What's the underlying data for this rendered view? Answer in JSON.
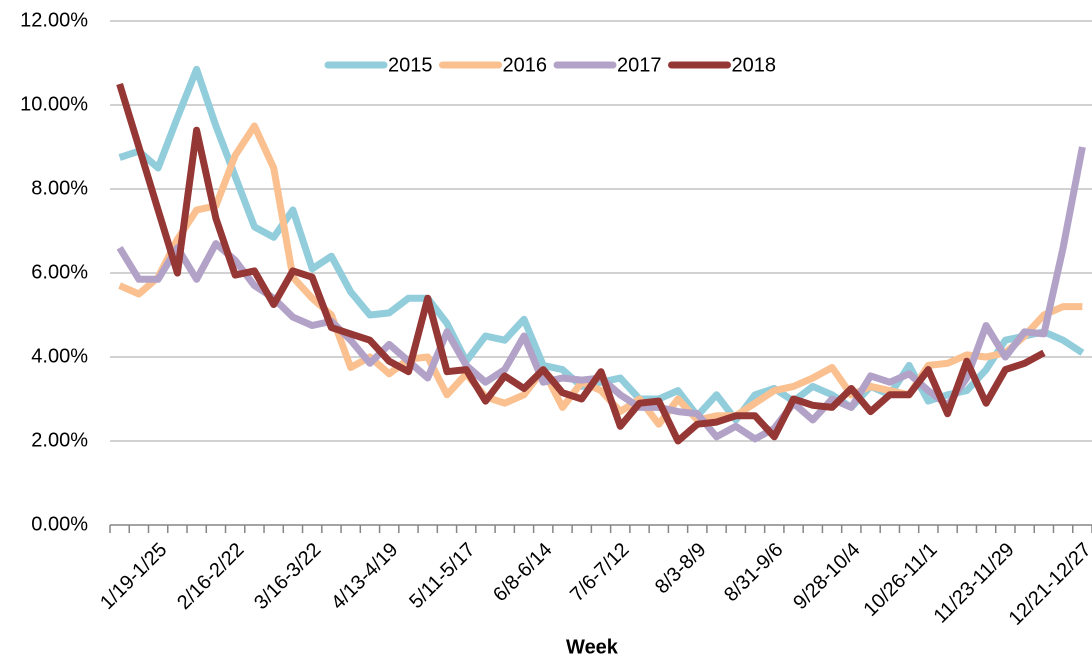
{
  "chart_data": {
    "type": "line",
    "x_label": "Week",
    "categories": [
      null,
      null,
      "1/19-1/25",
      null,
      null,
      null,
      "2/16-2/22",
      null,
      null,
      null,
      "3/16-3/22",
      null,
      null,
      null,
      "4/13-4/19",
      null,
      null,
      null,
      "5/11-5/17",
      null,
      null,
      null,
      "6/8-6/14",
      null,
      null,
      null,
      "7/6-7/12",
      null,
      null,
      null,
      "8/3-8/9",
      null,
      null,
      null,
      "8/31-9/6",
      null,
      null,
      null,
      "9/28-10/4",
      null,
      null,
      null,
      "10/26-11/1",
      null,
      null,
      null,
      "11/23-11/29",
      null,
      null,
      null,
      "12/21-12/27"
    ],
    "series": [
      {
        "name": "2015",
        "color": "#92cddc",
        "values": [
          8.75,
          8.9,
          8.5,
          9.7,
          10.85,
          9.5,
          8.3,
          7.1,
          6.85,
          7.5,
          6.1,
          6.4,
          5.55,
          5.0,
          5.05,
          5.4,
          5.4,
          4.8,
          3.9,
          4.5,
          4.4,
          4.9,
          3.8,
          3.7,
          3.3,
          3.4,
          3.5,
          3.0,
          3.0,
          3.2,
          2.6,
          3.1,
          2.5,
          3.1,
          3.25,
          2.95,
          3.3,
          3.1,
          2.8,
          3.3,
          3.1,
          3.8,
          2.95,
          3.1,
          3.2,
          3.7,
          4.4,
          4.5,
          4.6,
          4.4,
          4.1
        ]
      },
      {
        "name": "2016",
        "color": "#fac090",
        "values": [
          5.7,
          5.5,
          5.9,
          6.8,
          7.5,
          7.6,
          8.8,
          9.5,
          8.5,
          5.9,
          5.4,
          5.0,
          3.75,
          4.0,
          3.6,
          3.95,
          4.0,
          3.1,
          3.6,
          3.05,
          2.9,
          3.1,
          3.7,
          2.8,
          3.4,
          3.2,
          2.7,
          3.0,
          2.4,
          3.0,
          2.5,
          2.6,
          2.6,
          2.9,
          3.2,
          3.3,
          3.5,
          3.75,
          3.1,
          3.3,
          3.2,
          3.1,
          3.8,
          3.85,
          4.05,
          4.0,
          4.1,
          4.5,
          5.0,
          5.2,
          5.2
        ]
      },
      {
        "name": "2017",
        "color": "#b3a2c7",
        "values": [
          6.6,
          5.85,
          5.85,
          6.6,
          5.85,
          6.7,
          6.3,
          5.7,
          5.4,
          4.95,
          4.75,
          4.85,
          4.4,
          3.85,
          4.3,
          3.9,
          3.5,
          4.6,
          3.8,
          3.4,
          3.7,
          4.5,
          3.4,
          3.5,
          3.45,
          3.5,
          3.1,
          2.8,
          2.8,
          2.7,
          2.65,
          2.1,
          2.35,
          2.05,
          2.3,
          2.9,
          2.5,
          3.0,
          2.8,
          3.55,
          3.4,
          3.6,
          3.2,
          2.85,
          3.5,
          4.75,
          4.0,
          4.6,
          4.55,
          6.6,
          9.0
        ]
      },
      {
        "name": "2018",
        "color": "#953735",
        "values": [
          10.5,
          9.0,
          7.5,
          6.0,
          9.4,
          7.3,
          5.95,
          6.05,
          5.25,
          6.05,
          5.9,
          4.7,
          4.55,
          4.4,
          3.9,
          3.65,
          5.4,
          3.65,
          3.7,
          2.95,
          3.55,
          3.25,
          3.7,
          3.15,
          3.0,
          3.65,
          2.35,
          2.9,
          2.95,
          2.0,
          2.4,
          2.45,
          2.6,
          2.6,
          2.1,
          3.0,
          2.85,
          2.8,
          3.25,
          2.7,
          3.1,
          3.1,
          3.7,
          2.65,
          3.9,
          2.9,
          3.7,
          3.85,
          4.1,
          null,
          null
        ]
      }
    ],
    "ylim": [
      0,
      12
    ],
    "yticks": [
      {
        "value": 0,
        "label": "0.00%"
      },
      {
        "value": 2,
        "label": "2.00%"
      },
      {
        "value": 4,
        "label": "4.00%"
      },
      {
        "value": 6,
        "label": "6.00%"
      },
      {
        "value": 8,
        "label": "8.00%"
      },
      {
        "value": 10,
        "label": "10.00%"
      },
      {
        "value": 12,
        "label": "12.00%"
      }
    ],
    "grid": true,
    "legend": "top"
  }
}
